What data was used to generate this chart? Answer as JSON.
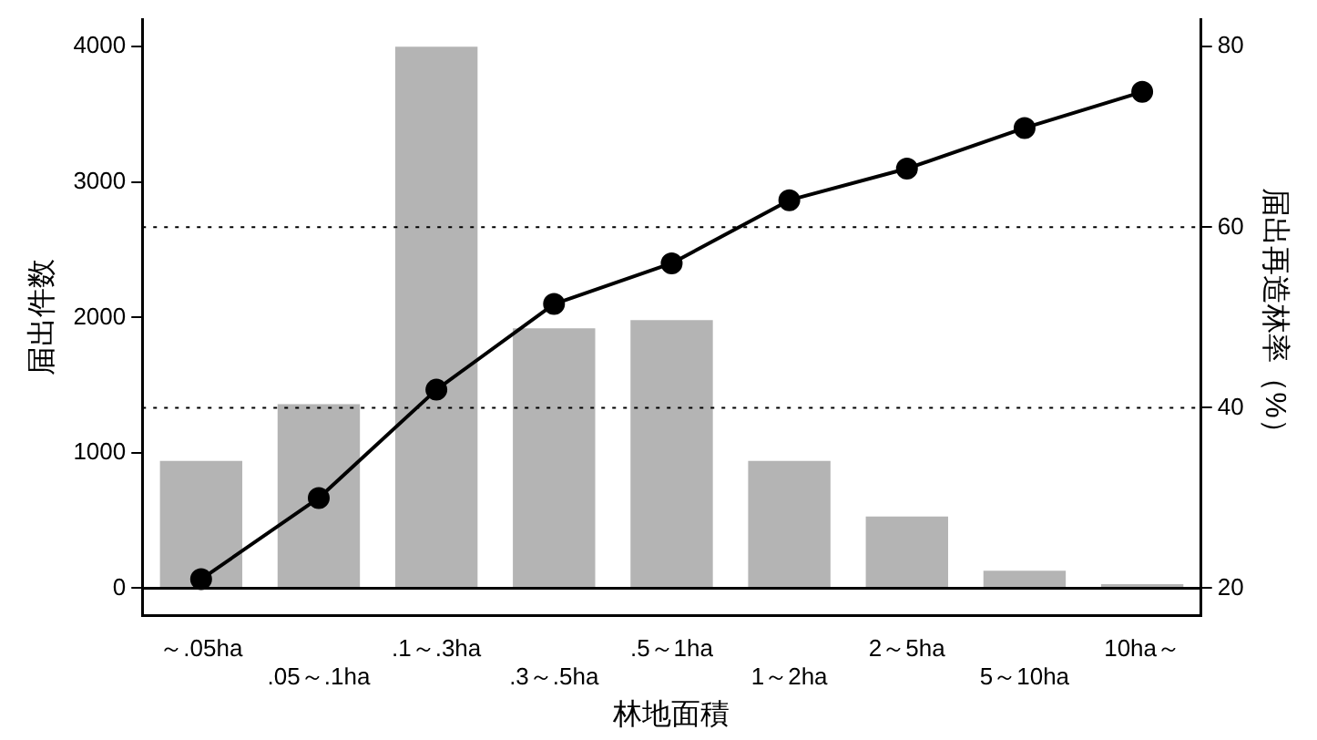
{
  "chart_data": {
    "type": "bar",
    "xlabel": "林地面積",
    "ylabel": "届出件数",
    "y2label": "届出再造林率（%）",
    "categories": [
      "～.05ha",
      ".05～.1ha",
      ".1～.3ha",
      ".3～.5ha",
      ".5～1ha",
      "1～2ha",
      "2～5ha",
      "5～10ha",
      "10ha～"
    ],
    "series": [
      {
        "color": "#b4b4b4",
        "values": [
          940,
          1360,
          4000,
          1920,
          1980,
          940,
          530,
          130,
          30
        ]
      },
      {
        "type": "line",
        "axis": "y2",
        "color": "#000000",
        "marker": "circle",
        "line_style": "solid",
        "values": [
          21,
          30,
          42,
          51.5,
          56,
          63,
          66.5,
          71,
          75
        ]
      }
    ],
    "ylim": [
      -200,
      4200
    ],
    "yticks": [
      0,
      1000,
      2000,
      3000,
      4000
    ],
    "y2lim": [
      17,
      83
    ],
    "y2ticks": [
      20,
      40,
      60,
      80
    ],
    "ref_lines": [
      {
        "axis": "y",
        "value": 0,
        "line_style": "solid",
        "color": "#000000"
      },
      {
        "axis": "y2",
        "value": 40,
        "line_style": "dotted",
        "color": "#000000"
      },
      {
        "axis": "y2",
        "value": 60,
        "line_style": "dotted",
        "color": "#000000"
      }
    ],
    "grid": false,
    "legend": false
  }
}
